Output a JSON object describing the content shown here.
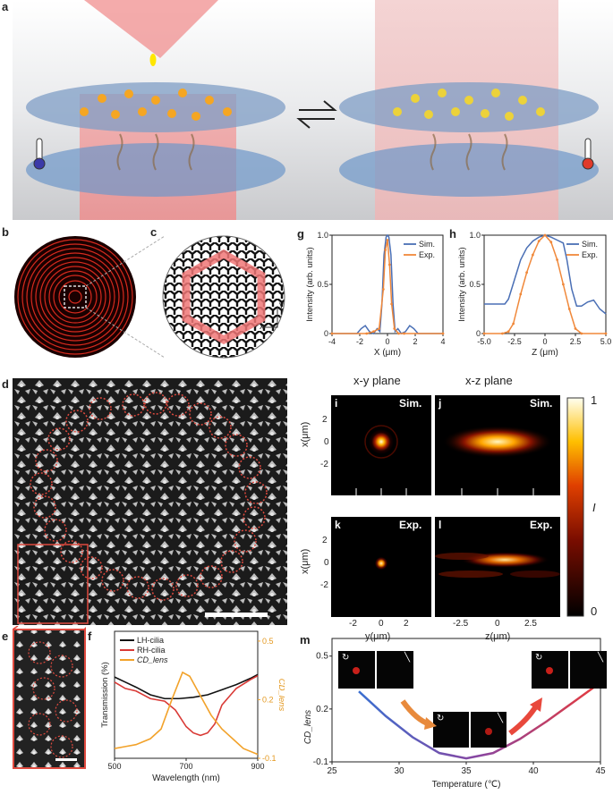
{
  "panels": {
    "a": "a",
    "b": "b",
    "c": "c",
    "d": "d",
    "e": "e",
    "f": "f",
    "g": "g",
    "h": "h",
    "i": "i",
    "j": "j",
    "k": "k",
    "l": "l",
    "m": "m"
  },
  "axes_c": {
    "y": "y",
    "x": "x"
  },
  "plane_titles": {
    "xy": "x-y plane",
    "xz": "x-z plane"
  },
  "labels": {
    "sim": "Sim.",
    "exp": "Exp."
  },
  "colorbar": {
    "max": "1",
    "min": "0",
    "label": "I"
  },
  "maps": {
    "ylabel": "x(μm)",
    "y_ticks": [
      "2",
      "0",
      "-2"
    ],
    "k_xlabel": "y(μm)",
    "k_xticks": [
      "-2",
      "0",
      "2"
    ],
    "l_xlabel": "z(μm)",
    "l_xticks": [
      "-2.5",
      "0",
      "2.5"
    ]
  },
  "chart_data": [
    {
      "id": "g",
      "type": "line",
      "xlabel": "X (μm)",
      "ylabel": "Intensity (arb. units)",
      "xlim": [
        -4,
        4
      ],
      "ylim": [
        0,
        1
      ],
      "xticks": [
        "-4",
        "-2",
        "0",
        "2",
        "4"
      ],
      "yticks": [
        "0",
        "0.5",
        "1.0"
      ],
      "series": [
        {
          "name": "Sim.",
          "color": "#4a6fb5",
          "x": [
            -4,
            -2.2,
            -1.9,
            -1.6,
            -1.3,
            -1.0,
            -0.75,
            -0.55,
            -0.4,
            -0.25,
            -0.1,
            0,
            0.1,
            0.25,
            0.4,
            0.55,
            0.75,
            1.0,
            1.3,
            1.6,
            1.9,
            2.2,
            4
          ],
          "y": [
            0,
            0,
            0.05,
            0.08,
            0.02,
            0,
            0.05,
            0.02,
            0.3,
            0.8,
            0.98,
            1.0,
            0.98,
            0.8,
            0.3,
            0.02,
            0.05,
            0,
            0.02,
            0.08,
            0.05,
            0,
            0
          ]
        },
        {
          "name": "Exp.",
          "color": "#f0883a",
          "x": [
            -4,
            -1.5,
            -1.0,
            -0.6,
            -0.3,
            -0.15,
            0,
            0.15,
            0.3,
            0.5,
            0.8,
            1.2,
            4
          ],
          "y": [
            0,
            0,
            0.02,
            0.05,
            0.45,
            0.85,
            0.95,
            0.7,
            0.3,
            0.05,
            0,
            0,
            0
          ]
        }
      ]
    },
    {
      "id": "h",
      "type": "line",
      "xlabel": "Z (μm)",
      "ylabel": "Intensity (arb. units)",
      "xlim": [
        -5,
        5
      ],
      "ylim": [
        0,
        1
      ],
      "xticks": [
        "-5.0",
        "-2.5",
        "0",
        "2.5",
        "5.0"
      ],
      "yticks": [
        "0",
        "0.5",
        "1.0"
      ],
      "series": [
        {
          "name": "Sim.",
          "color": "#4a6fb5",
          "x": [
            -5,
            -4,
            -3.3,
            -3,
            -2.5,
            -2,
            -1.5,
            -1,
            -0.5,
            0,
            0.5,
            1,
            1.5,
            1.8,
            2.2,
            2.6,
            3,
            3.5,
            4,
            4.5,
            5
          ],
          "y": [
            0.3,
            0.3,
            0.3,
            0.35,
            0.55,
            0.75,
            0.87,
            0.94,
            0.98,
            1.0,
            0.98,
            0.95,
            0.92,
            0.75,
            0.45,
            0.28,
            0.28,
            0.32,
            0.34,
            0.25,
            0.2
          ]
        },
        {
          "name": "Exp.",
          "color": "#f0883a",
          "x": [
            -5,
            -3.5,
            -3,
            -2.6,
            -2,
            -1.5,
            -1,
            -0.5,
            0,
            0.5,
            1,
            1.5,
            2,
            2.5,
            3,
            5
          ],
          "y": [
            0,
            0,
            0.02,
            0.1,
            0.4,
            0.62,
            0.8,
            0.94,
            1.0,
            0.93,
            0.75,
            0.5,
            0.25,
            0.05,
            0,
            0
          ]
        }
      ]
    },
    {
      "id": "f",
      "type": "line",
      "xlabel": "Wavelength (nm)",
      "ylabel": "Transmission (%)",
      "y2label": "CD_lens",
      "xlim": [
        500,
        900
      ],
      "ylim": [
        0,
        100
      ],
      "y2lim": [
        -0.1,
        0.55
      ],
      "xticks": [
        "500",
        "700",
        "900"
      ],
      "y2ticks": [
        "-0.1",
        "0.2",
        "0.5"
      ],
      "series": [
        {
          "name": "LH-cilia",
          "color": "#111111",
          "axis": "left",
          "x": [
            500,
            530,
            560,
            600,
            640,
            680,
            720,
            760,
            800,
            840,
            880,
            900
          ],
          "y": [
            64,
            60,
            56,
            50,
            47,
            47,
            48,
            50,
            54,
            58,
            63,
            66
          ]
        },
        {
          "name": "RH-cilia",
          "color": "#d93a36",
          "axis": "left",
          "x": [
            500,
            530,
            560,
            600,
            640,
            670,
            700,
            720,
            740,
            760,
            780,
            800,
            840,
            880,
            900
          ],
          "y": [
            60,
            55,
            53,
            47,
            45,
            38,
            25,
            20,
            18,
            20,
            27,
            42,
            55,
            62,
            65
          ]
        },
        {
          "name": "CD_lens",
          "color": "#f2a22a",
          "axis": "right",
          "x": [
            500,
            530,
            560,
            600,
            630,
            660,
            690,
            710,
            740,
            770,
            800,
            830,
            860,
            900
          ],
          "y": [
            -0.05,
            -0.04,
            -0.03,
            0.0,
            0.05,
            0.2,
            0.34,
            0.32,
            0.22,
            0.12,
            0.05,
            0.0,
            -0.05,
            -0.08
          ]
        }
      ]
    },
    {
      "id": "m",
      "type": "line",
      "xlabel": "Temperature (℃)",
      "ylabel": "CD_lens",
      "xlim": [
        25,
        45
      ],
      "ylim": [
        -0.1,
        0.6
      ],
      "xticks": [
        "25",
        "30",
        "35",
        "40",
        "45"
      ],
      "yticks": [
        "-0.1",
        "0.2",
        "0.5"
      ],
      "series": [
        {
          "name": "",
          "color": "gradient",
          "x": [
            27,
            29,
            31,
            33,
            35,
            37,
            39,
            41,
            43,
            45
          ],
          "y": [
            0.3,
            0.16,
            0.04,
            -0.05,
            -0.08,
            -0.05,
            0.03,
            0.13,
            0.24,
            0.35
          ]
        }
      ]
    }
  ]
}
